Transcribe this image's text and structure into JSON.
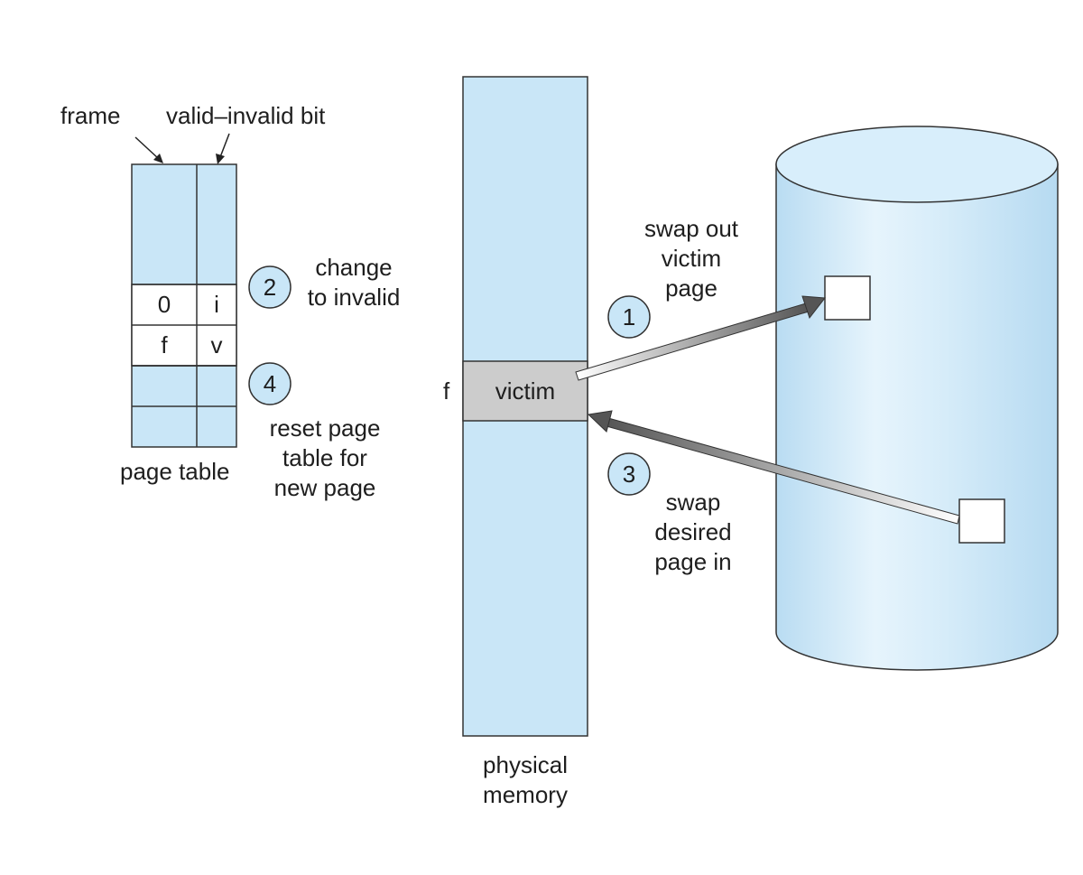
{
  "page_table": {
    "frame_label": "frame",
    "valid_invalid_label": "valid–invalid bit",
    "rows": [
      {
        "frame": "0",
        "bit": "i"
      },
      {
        "frame": "f",
        "bit": "v"
      }
    ],
    "caption": "page table"
  },
  "steps": {
    "step1": {
      "number": "1",
      "text_lines": [
        "swap out",
        "victim",
        "page"
      ]
    },
    "step2": {
      "number": "2",
      "text_lines": [
        "change",
        "to invalid"
      ]
    },
    "step3": {
      "number": "3",
      "text_lines": [
        "swap",
        "desired",
        "page in"
      ]
    },
    "step4": {
      "number": "4",
      "text_lines": [
        "reset page",
        "table for",
        "new page"
      ]
    }
  },
  "physical_memory": {
    "frame_label": "f",
    "victim_label": "victim",
    "caption_lines": [
      "physical",
      "memory"
    ]
  },
  "colors": {
    "light_blue": "#c9e6f7",
    "victim_gray": "#cccccc",
    "circle_fill": "#c9e6f7",
    "arrow_dark": "#6b6b6b"
  }
}
